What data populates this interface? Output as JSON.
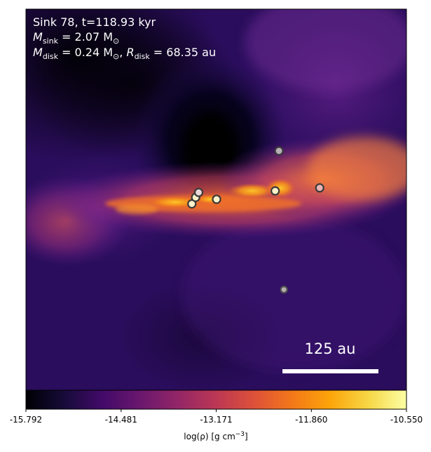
{
  "chart_data": {
    "type": "heatmap",
    "title": "",
    "annotation": {
      "line1": "Sink 78, t=118.93 kyr",
      "line2_symbol": "M",
      "line2_sub": "sink",
      "line2_value": " = 2.07 M",
      "line2_unit_sub": "⊙",
      "line3_symbol": "M",
      "line3_sub": "disk",
      "line3_value": " = 0.24 M",
      "line3_unit_sub": "⊙",
      "line3_sep": ", ",
      "line3_r_symbol": "R",
      "line3_r_sub": "disk",
      "line3_r_value": " = 68.35 au"
    },
    "scale_bar": {
      "label": "125 au",
      "length_au": 125
    },
    "colorbar": {
      "label": "log(ρ) [g cm",
      "label_exp": "−3",
      "label_close": "]",
      "range": [
        -15.792,
        -10.55
      ],
      "ticks": [
        -15.792,
        -14.481,
        -13.171,
        -11.86,
        -10.55
      ],
      "tick_labels": [
        "-15.792",
        "-14.481",
        "-13.171",
        "-11.860",
        "-10.550"
      ],
      "colormap": "inferno"
    },
    "grid": false,
    "sinks": [
      {
        "x": 0.436,
        "y": 0.511,
        "type": "bright"
      },
      {
        "x": 0.446,
        "y": 0.494,
        "type": "bright"
      },
      {
        "x": 0.454,
        "y": 0.481,
        "type": "pale"
      },
      {
        "x": 0.501,
        "y": 0.499,
        "type": "bright"
      },
      {
        "x": 0.655,
        "y": 0.477,
        "type": "bright"
      },
      {
        "x": 0.665,
        "y": 0.372,
        "type": "grey"
      },
      {
        "x": 0.772,
        "y": 0.469,
        "type": "pink"
      },
      {
        "x": 0.678,
        "y": 0.736,
        "type": "grey-small"
      }
    ],
    "colors": {
      "background": "#2b0b57",
      "disk": "#f56a2c",
      "hot": "#fcb517",
      "void": "#000004"
    }
  }
}
